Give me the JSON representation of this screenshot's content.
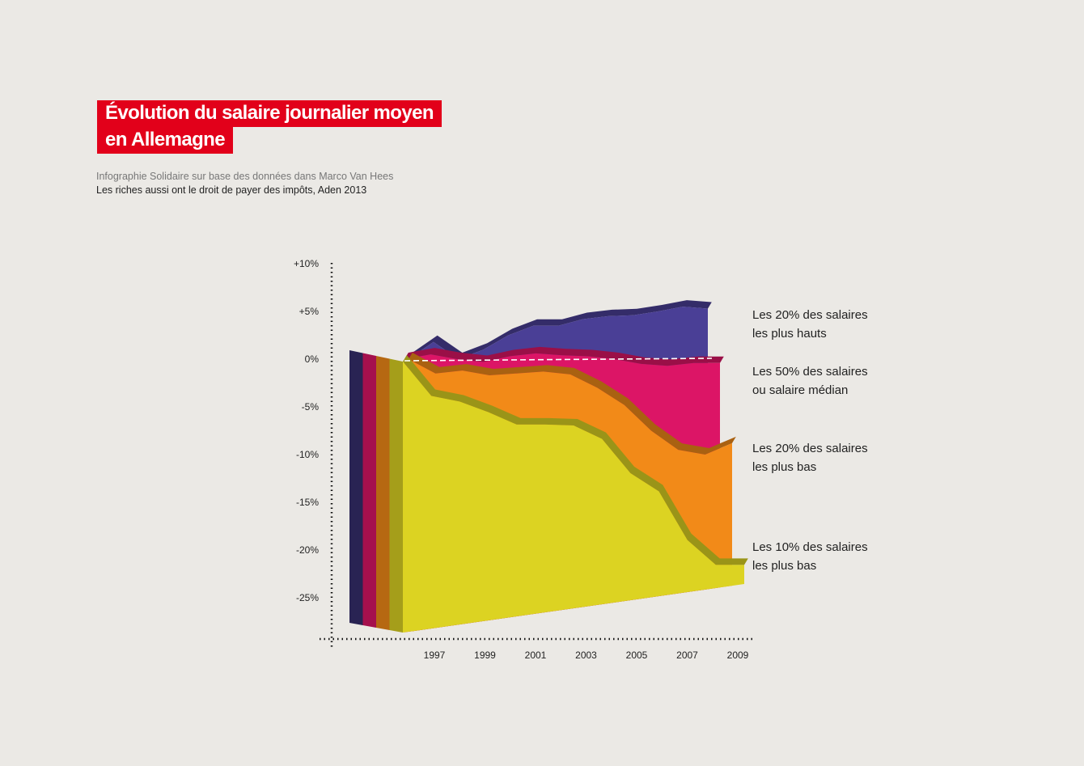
{
  "title": {
    "line1": "Évolution du salaire journalier moyen",
    "line2": "en Allemagne"
  },
  "source": {
    "line1": "Infographie Solidaire sur base des données dans Marco Van Hees",
    "line2": "Les riches aussi ont le droit de payer des impôts, Aden 2013"
  },
  "colors": {
    "title_bg": "#e2001a",
    "background": "#ebe9e5"
  },
  "chart_data": {
    "type": "area",
    "style": "3d stacked-depth area",
    "x": [
      1996,
      1997,
      1998,
      1999,
      2000,
      2001,
      2002,
      2003,
      2004,
      2005,
      2006,
      2007,
      2008
    ],
    "x_tick_labels": [
      "1997",
      "1999",
      "2001",
      "2003",
      "2005",
      "2007",
      "2009"
    ],
    "y_tick_labels": [
      "+10%",
      "+5%",
      "0%",
      "-5%",
      "-10%",
      "-15%",
      "-20%",
      "-25%"
    ],
    "ylim": [
      -28,
      10
    ],
    "reference_line": {
      "y": 0,
      "style": "dashed"
    },
    "series": [
      {
        "name_line1": "Les 20% des salaires",
        "name_line2": "les plus hauts",
        "color": "#4a3f96",
        "values": [
          0,
          1.8,
          0,
          1,
          2.5,
          3.5,
          3.5,
          4.2,
          4.5,
          4.6,
          5,
          5.5,
          5.3
        ]
      },
      {
        "name_line1": "Les 50% des salaires",
        "name_line2": "ou salaire médian",
        "color": "#dc1566",
        "values": [
          0,
          0.5,
          0,
          -0.3,
          0.3,
          0.6,
          0.4,
          0.3,
          0,
          -0.5,
          -0.7,
          -0.4,
          -0.4
        ]
      },
      {
        "name_line1": "Les 20% des salaires",
        "name_line2": "les plus bas",
        "color": "#f28a18",
        "values": [
          0,
          -1.5,
          -1.2,
          -1.7,
          -1.5,
          -1.3,
          -1.6,
          -3,
          -4.8,
          -7.5,
          -9.5,
          -10,
          -8.8
        ]
      },
      {
        "name_line1": "Les 10% des salaires",
        "name_line2": "les plus bas",
        "color": "#dcd322",
        "values": [
          0,
          -3.6,
          -4.2,
          -5.3,
          -6.6,
          -6.6,
          -6.7,
          -8.1,
          -11.7,
          -13.6,
          -18.7,
          -21.3,
          -21.3
        ]
      }
    ],
    "legend": "right",
    "grid": false
  }
}
